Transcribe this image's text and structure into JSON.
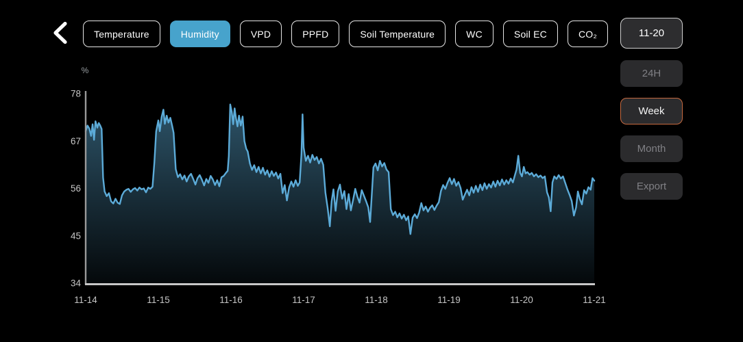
{
  "header": {
    "back_icon": "chevron-left",
    "tabs": [
      {
        "label": "Temperature",
        "selected": false
      },
      {
        "label": "Humidity",
        "selected": true
      },
      {
        "label": "VPD",
        "selected": false
      },
      {
        "label": "PPFD",
        "selected": false
      },
      {
        "label": "Soil Temperature",
        "selected": false
      },
      {
        "label": "WC",
        "selected": false
      },
      {
        "label": "Soil EC",
        "selected": false
      },
      {
        "label": "CO₂",
        "selected": false
      }
    ],
    "date_button": "11-20"
  },
  "sidebar": {
    "buttons": [
      {
        "label": "24H",
        "state": "dim"
      },
      {
        "label": "Week",
        "state": "active"
      },
      {
        "label": "Month",
        "state": "dim"
      },
      {
        "label": "Export",
        "state": "dim"
      }
    ]
  },
  "colors": {
    "background": "#000000",
    "accent_blue": "#47a3cc",
    "accent_orange": "#c76a40",
    "line": "#5cabd8",
    "area_color": "#5fb0dc",
    "area_top_opacity": 0.5,
    "area_bottom_opacity": 0.05,
    "y_axis": "#9a9a9a",
    "x_axis": "#c8c8c8",
    "tick_text": "#c6c6c6",
    "unit_text": "#9aa0a4"
  },
  "chart_data": {
    "type": "area",
    "series_name": "Humidity",
    "unit": "%",
    "ylabel": "%",
    "ylim": [
      34,
      78
    ],
    "y_ticks": [
      78,
      67,
      56,
      45,
      34
    ],
    "x_labels": [
      "11-14",
      "11-15",
      "11-16",
      "11-17",
      "11-18",
      "11-19",
      "11-20",
      "11-21"
    ],
    "xlim_days": [
      0,
      7
    ],
    "grid": false,
    "legend": false,
    "points": [
      [
        0,
        69.3
      ],
      [
        0.025,
        70.6
      ],
      [
        0.05,
        69.9
      ],
      [
        0.075,
        68.2
      ],
      [
        0.095,
        70.9
      ],
      [
        0.115,
        67.3
      ],
      [
        0.135,
        71.6
      ],
      [
        0.16,
        70.1
      ],
      [
        0.18,
        71.2
      ],
      [
        0.2,
        70.6
      ],
      [
        0.22,
        69.8
      ],
      [
        0.24,
        58.5
      ],
      [
        0.26,
        55.3
      ],
      [
        0.29,
        54.2
      ],
      [
        0.32,
        54.9
      ],
      [
        0.35,
        53
      ],
      [
        0.38,
        52.5
      ],
      [
        0.41,
        53.6
      ],
      [
        0.44,
        52.7
      ],
      [
        0.47,
        52.4
      ],
      [
        0.5,
        54.4
      ],
      [
        0.53,
        55.3
      ],
      [
        0.56,
        55.7
      ],
      [
        0.59,
        55.9
      ],
      [
        0.62,
        55.2
      ],
      [
        0.65,
        55.8
      ],
      [
        0.68,
        56.1
      ],
      [
        0.71,
        55.5
      ],
      [
        0.74,
        56.2
      ],
      [
        0.77,
        55.8
      ],
      [
        0.8,
        56
      ],
      [
        0.83,
        55.1
      ],
      [
        0.86,
        56.2
      ],
      [
        0.89,
        55.9
      ],
      [
        0.92,
        56.4
      ],
      [
        0.945,
        62
      ],
      [
        0.97,
        69.2
      ],
      [
        1,
        71.8
      ],
      [
        1.02,
        69.3
      ],
      [
        1.045,
        72.6
      ],
      [
        1.07,
        74.3
      ],
      [
        1.09,
        71
      ],
      [
        1.115,
        72.9
      ],
      [
        1.14,
        71.3
      ],
      [
        1.165,
        72.4
      ],
      [
        1.19,
        70.6
      ],
      [
        1.21,
        68.9
      ],
      [
        1.24,
        60.5
      ],
      [
        1.27,
        58.6
      ],
      [
        1.3,
        59.3
      ],
      [
        1.33,
        58.1
      ],
      [
        1.36,
        59
      ],
      [
        1.39,
        57.6
      ],
      [
        1.42,
        58.8
      ],
      [
        1.45,
        59.4
      ],
      [
        1.48,
        58.2
      ],
      [
        1.51,
        56.9
      ],
      [
        1.54,
        58.4
      ],
      [
        1.57,
        59.1
      ],
      [
        1.6,
        58
      ],
      [
        1.63,
        56.7
      ],
      [
        1.66,
        58.2
      ],
      [
        1.69,
        57.3
      ],
      [
        1.72,
        58.9
      ],
      [
        1.75,
        58.1
      ],
      [
        1.78,
        56.8
      ],
      [
        1.81,
        57.9
      ],
      [
        1.84,
        56.5
      ],
      [
        1.87,
        58.6
      ],
      [
        1.9,
        58.9
      ],
      [
        1.93,
        59.6
      ],
      [
        1.955,
        60.1
      ],
      [
        1.97,
        63.5
      ],
      [
        1.99,
        75.5
      ],
      [
        2.01,
        73.8
      ],
      [
        2.03,
        70.9
      ],
      [
        2.05,
        74.6
      ],
      [
        2.07,
        72.2
      ],
      [
        2.09,
        70.4
      ],
      [
        2.11,
        72.9
      ],
      [
        2.135,
        70.6
      ],
      [
        2.16,
        72.7
      ],
      [
        2.185,
        67
      ],
      [
        2.21,
        65.2
      ],
      [
        2.23,
        64.6
      ],
      [
        2.26,
        61.8
      ],
      [
        2.29,
        60.3
      ],
      [
        2.32,
        61.4
      ],
      [
        2.35,
        59.8
      ],
      [
        2.38,
        61
      ],
      [
        2.41,
        59.5
      ],
      [
        2.44,
        60.8
      ],
      [
        2.47,
        59.2
      ],
      [
        2.5,
        60.2
      ],
      [
        2.53,
        58.7
      ],
      [
        2.56,
        60
      ],
      [
        2.59,
        58.9
      ],
      [
        2.62,
        59.7
      ],
      [
        2.65,
        58.3
      ],
      [
        2.68,
        59.4
      ],
      [
        2.71,
        54.9
      ],
      [
        2.74,
        56.8
      ],
      [
        2.77,
        53.2
      ],
      [
        2.8,
        56.2
      ],
      [
        2.83,
        57.6
      ],
      [
        2.86,
        56.4
      ],
      [
        2.89,
        57.9
      ],
      [
        2.92,
        56.6
      ],
      [
        2.945,
        57.4
      ],
      [
        2.97,
        64
      ],
      [
        2.985,
        73.2
      ],
      [
        3,
        65.5
      ],
      [
        3.03,
        62.4
      ],
      [
        3.06,
        63.6
      ],
      [
        3.09,
        62
      ],
      [
        3.12,
        63.8
      ],
      [
        3.15,
        62.6
      ],
      [
        3.18,
        63.3
      ],
      [
        3.21,
        61.8
      ],
      [
        3.24,
        62.9
      ],
      [
        3.27,
        61.5
      ],
      [
        3.3,
        55
      ],
      [
        3.33,
        51.5
      ],
      [
        3.36,
        47.2
      ],
      [
        3.385,
        53
      ],
      [
        3.41,
        55.8
      ],
      [
        3.44,
        50.8
      ],
      [
        3.47,
        55.3
      ],
      [
        3.5,
        56.9
      ],
      [
        3.53,
        53.6
      ],
      [
        3.56,
        55.4
      ],
      [
        3.59,
        51.2
      ],
      [
        3.62,
        54.7
      ],
      [
        3.65,
        50.9
      ],
      [
        3.68,
        53.3
      ],
      [
        3.71,
        55.9
      ],
      [
        3.74,
        54.1
      ],
      [
        3.77,
        52.7
      ],
      [
        3.8,
        55.6
      ],
      [
        3.83,
        54.3
      ],
      [
        3.86,
        53
      ],
      [
        3.89,
        51.6
      ],
      [
        3.915,
        48.2
      ],
      [
        3.94,
        55
      ],
      [
        3.96,
        60.9
      ],
      [
        3.99,
        61.8
      ],
      [
        4.02,
        60.2
      ],
      [
        4.05,
        62.4
      ],
      [
        4.08,
        61.1
      ],
      [
        4.11,
        61.9
      ],
      [
        4.14,
        60.4
      ],
      [
        4.17,
        59.8
      ],
      [
        4.2,
        51.2
      ],
      [
        4.23,
        49.8
      ],
      [
        4.26,
        50.6
      ],
      [
        4.29,
        49.3
      ],
      [
        4.32,
        50.2
      ],
      [
        4.35,
        49
      ],
      [
        4.38,
        49.9
      ],
      [
        4.41,
        48.6
      ],
      [
        4.44,
        49.5
      ],
      [
        4.47,
        45.4
      ],
      [
        4.5,
        49.2
      ],
      [
        4.53,
        50
      ],
      [
        4.56,
        49.1
      ],
      [
        4.59,
        50.4
      ],
      [
        4.62,
        52.6
      ],
      [
        4.65,
        50.9
      ],
      [
        4.68,
        51.8
      ],
      [
        4.71,
        50.6
      ],
      [
        4.74,
        51.5
      ],
      [
        4.77,
        52.1
      ],
      [
        4.8,
        51
      ],
      [
        4.83,
        52
      ],
      [
        4.86,
        52.8
      ],
      [
        4.89,
        55.4
      ],
      [
        4.92,
        56.8
      ],
      [
        4.95,
        55.9
      ],
      [
        4.98,
        57.3
      ],
      [
        5.01,
        58.4
      ],
      [
        5.04,
        57
      ],
      [
        5.07,
        58.2
      ],
      [
        5.1,
        56.6
      ],
      [
        5.13,
        57.5
      ],
      [
        5.16,
        56.1
      ],
      [
        5.19,
        53.4
      ],
      [
        5.22,
        54.6
      ],
      [
        5.25,
        55.7
      ],
      [
        5.28,
        54.4
      ],
      [
        5.31,
        56.3
      ],
      [
        5.34,
        55
      ],
      [
        5.37,
        56.6
      ],
      [
        5.4,
        55.2
      ],
      [
        5.43,
        56.9
      ],
      [
        5.46,
        55.6
      ],
      [
        5.49,
        57.2
      ],
      [
        5.52,
        55.9
      ],
      [
        5.55,
        57
      ],
      [
        5.58,
        56.2
      ],
      [
        5.61,
        57.6
      ],
      [
        5.64,
        56.4
      ],
      [
        5.67,
        57.8
      ],
      [
        5.7,
        56.7
      ],
      [
        5.73,
        58.1
      ],
      [
        5.76,
        56.9
      ],
      [
        5.79,
        57.9
      ],
      [
        5.82,
        57.1
      ],
      [
        5.85,
        58.3
      ],
      [
        5.88,
        57.4
      ],
      [
        5.905,
        58.9
      ],
      [
        5.93,
        60.4
      ],
      [
        5.955,
        63.6
      ],
      [
        5.98,
        59.6
      ],
      [
        6.005,
        58.8
      ],
      [
        6.03,
        61
      ],
      [
        6.055,
        59.5
      ],
      [
        6.08,
        59.8
      ],
      [
        6.11,
        59.2
      ],
      [
        6.14,
        59.6
      ],
      [
        6.17,
        58.8
      ],
      [
        6.2,
        59.3
      ],
      [
        6.23,
        58.6
      ],
      [
        6.26,
        59
      ],
      [
        6.29,
        58.4
      ],
      [
        6.32,
        58.8
      ],
      [
        6.35,
        55.1
      ],
      [
        6.375,
        53.9
      ],
      [
        6.4,
        50.7
      ],
      [
        6.425,
        57.4
      ],
      [
        6.45,
        58.8
      ],
      [
        6.48,
        58.2
      ],
      [
        6.51,
        59.1
      ],
      [
        6.54,
        58.3
      ],
      [
        6.57,
        58.8
      ],
      [
        6.6,
        57.3
      ],
      [
        6.63,
        55.8
      ],
      [
        6.66,
        54.5
      ],
      [
        6.69,
        53.1
      ],
      [
        6.72,
        49.7
      ],
      [
        6.75,
        51.6
      ],
      [
        6.775,
        55.3
      ],
      [
        6.8,
        53.6
      ],
      [
        6.83,
        52.3
      ],
      [
        6.86,
        55.6
      ],
      [
        6.89,
        54.8
      ],
      [
        6.92,
        56.3
      ],
      [
        6.95,
        55.7
      ],
      [
        6.975,
        58.4
      ],
      [
        7,
        57.8
      ]
    ]
  }
}
